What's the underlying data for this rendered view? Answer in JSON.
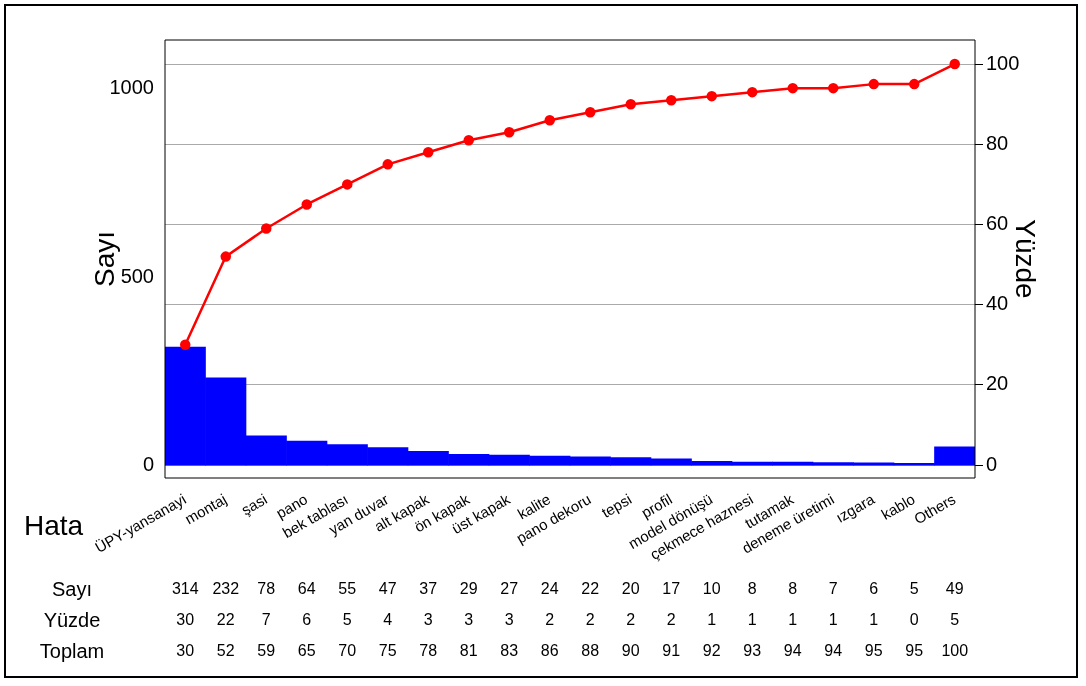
{
  "chart_data": {
    "type": "bar",
    "xlabel": "Hata",
    "ylabel": "Sayı",
    "y2label": "Yüzde",
    "categories": [
      "ÜPY-yansanayi",
      "montaj",
      "şasi",
      "pano",
      "bek tablası",
      "yan duvar",
      "alt kapak",
      "ön kapak",
      "üst kapak",
      "kalite",
      "pano dekoru",
      "tepsi",
      "profil",
      "model dönüşü",
      "çekmece haznesi",
      "tutamak",
      "deneme üretimi",
      "ızgara",
      "kablo",
      "Others"
    ],
    "series": [
      {
        "name": "Sayı",
        "color": "#0000ff",
        "values": [
          314,
          232,
          78,
          64,
          55,
          47,
          37,
          29,
          27,
          24,
          22,
          20,
          17,
          10,
          8,
          8,
          7,
          6,
          5,
          49
        ]
      },
      {
        "type": "line",
        "axis": "y2",
        "color": "#ff0000",
        "values": [
          30,
          52,
          59,
          65,
          70,
          75,
          78,
          81,
          83,
          86,
          88,
          90,
          91,
          92,
          93,
          94,
          94,
          95,
          95,
          100
        ]
      }
    ],
    "annotations": [
      "Yüzde",
      "30",
      "22",
      "7",
      "6",
      "5",
      "4",
      "3",
      "3",
      "3",
      "2",
      "2",
      "2",
      "2",
      "1",
      "1",
      "1",
      "1",
      "1",
      "0",
      "5",
      "Toplam"
    ],
    "ylim": [
      -34,
      1130
    ],
    "yticks": [
      0,
      500,
      1000
    ],
    "y2lim": [
      -3.2,
      106
    ],
    "y2ticks": [
      0,
      20,
      40,
      60,
      80,
      100
    ],
    "grid": true,
    "legend": false,
    "marker": "circle",
    "line_style": "solid",
    "data_labels": true
  }
}
